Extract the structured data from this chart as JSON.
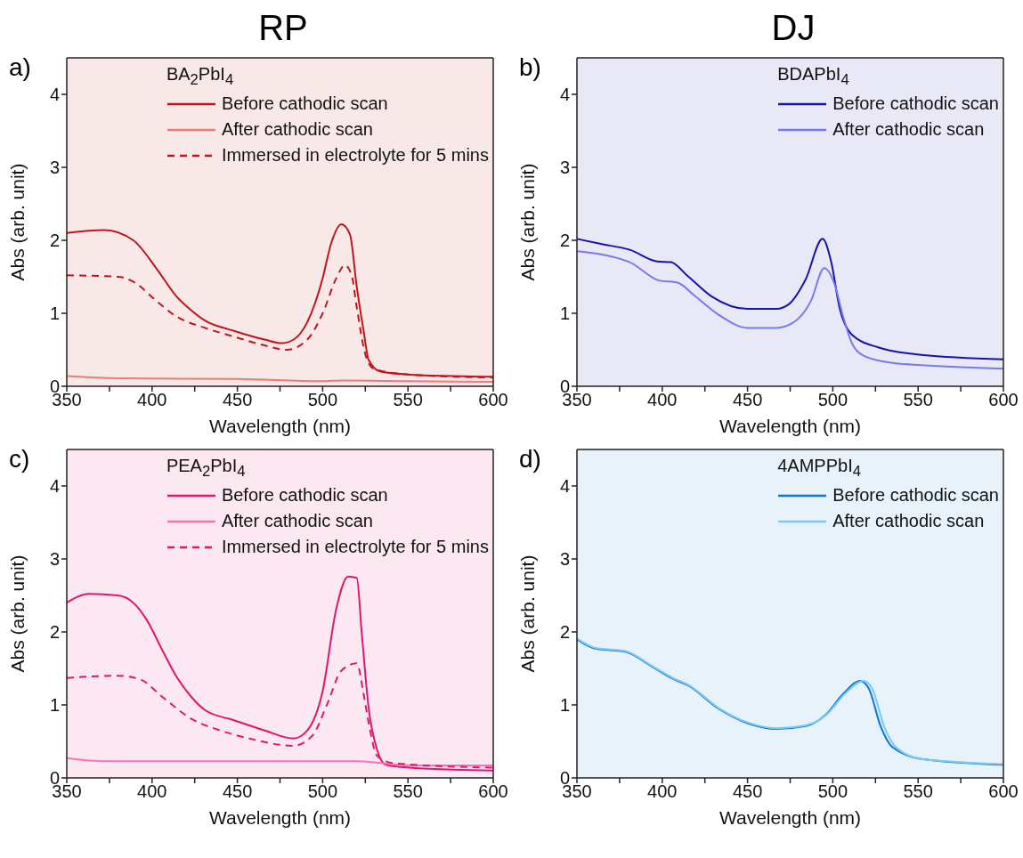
{
  "chart_data": [
    {
      "type": "line",
      "title": "RP",
      "annotations": [
        "a)"
      ],
      "xlabel": "Wavelength (nm)",
      "ylabel": "Abs (arb. unit)",
      "legend_title": "BA$_{2}$PbI$_{4}$",
      "legend": "top right",
      "grid": false,
      "marker": "none",
      "xlim": [
        350,
        600
      ],
      "xticks": [
        350,
        {
          "value": 375,
          "label": null
        },
        400,
        {
          "value": 425,
          "label": null
        },
        450,
        {
          "value": 475,
          "label": null
        },
        500,
        {
          "value": 525,
          "label": null
        },
        550,
        {
          "value": 575,
          "label": null
        },
        600
      ],
      "ylim": [
        0,
        4.5
      ],
      "yticks": [
        0,
        1,
        2,
        3,
        4
      ],
      "series": [
        {
          "name": "Before cathodic scan",
          "color": "#c0141c",
          "line_style": "solid",
          "x": [
            350,
            372,
            389,
            403,
            414,
            423,
            431,
            448,
            466,
            476,
            483,
            491,
            500,
            505,
            511,
            516,
            520,
            524,
            527,
            534,
            551,
            600
          ],
          "values": [
            2.1,
            2.14,
            2.0,
            1.6,
            1.24,
            1.04,
            0.9,
            0.76,
            0.64,
            0.59,
            0.64,
            0.88,
            1.48,
            1.96,
            2.22,
            2.08,
            1.36,
            0.76,
            0.36,
            0.2,
            0.16,
            0.13
          ]
        },
        {
          "name": "After cathodic scan",
          "color": "#f07a7a",
          "line_style": "solid",
          "x": [
            350,
            380,
            450,
            500,
            512,
            550,
            600
          ],
          "values": [
            0.14,
            0.11,
            0.1,
            0.07,
            0.08,
            0.07,
            0.06
          ]
        },
        {
          "name": "Immersed in electrolyte for 5 mins",
          "color": "#c0141c",
          "line_style": "dashed",
          "x": [
            350,
            380,
            390,
            401,
            414,
            431,
            448,
            466,
            479,
            491,
            500,
            508,
            513,
            517,
            520,
            525,
            530,
            551,
            600
          ],
          "values": [
            1.52,
            1.5,
            1.42,
            1.2,
            0.96,
            0.8,
            0.68,
            0.56,
            0.5,
            0.64,
            1.0,
            1.48,
            1.66,
            1.52,
            1.08,
            0.44,
            0.24,
            0.16,
            0.12
          ]
        }
      ]
    },
    {
      "type": "line",
      "title": "DJ",
      "annotations": [
        "b)"
      ],
      "xlabel": "Wavelength (nm)",
      "ylabel": "Abs (arb. unit)",
      "legend_title": "BDAPbI$_{4}$",
      "legend": "top right",
      "grid": false,
      "marker": "none",
      "xlim": [
        350,
        600
      ],
      "xticks": [
        350,
        {
          "value": 375,
          "label": null
        },
        400,
        {
          "value": 425,
          "label": null
        },
        450,
        {
          "value": 475,
          "label": null
        },
        500,
        {
          "value": 525,
          "label": null
        },
        550,
        {
          "value": 575,
          "label": null
        },
        600
      ],
      "ylim": [
        0,
        4.5
      ],
      "yticks": [
        0,
        1,
        2,
        3,
        4
      ],
      "series": [
        {
          "name": "Before cathodic scan",
          "color": "#1414a8",
          "line_style": "solid",
          "x": [
            350,
            364,
            381,
            397,
            405,
            415,
            429,
            450,
            467,
            474,
            484,
            494,
            499,
            504,
            511,
            527,
            552,
            600
          ],
          "values": [
            2.02,
            1.95,
            1.87,
            1.71,
            1.7,
            1.51,
            1.23,
            1.06,
            1.06,
            1.12,
            1.46,
            2.02,
            1.71,
            1.07,
            0.71,
            0.53,
            0.43,
            0.37
          ]
        },
        {
          "name": "After cathodic scan",
          "color": "#7878f0",
          "line_style": "solid",
          "x": [
            350,
            381,
            398,
            409,
            419,
            433,
            450,
            467,
            476,
            487,
            495,
            501,
            506,
            511,
            518,
            535,
            552,
            600
          ],
          "values": [
            1.85,
            1.7,
            1.45,
            1.42,
            1.24,
            0.98,
            0.8,
            0.8,
            0.86,
            1.16,
            1.62,
            1.4,
            0.96,
            0.6,
            0.42,
            0.32,
            0.29,
            0.24
          ]
        }
      ]
    },
    {
      "type": "line",
      "annotations": [
        "c)"
      ],
      "xlabel": "Wavelength (nm)",
      "ylabel": "Abs (arb. unit)",
      "legend_title": "PEA$_{2}$PbI$_{4}$",
      "legend": "top right",
      "grid": false,
      "marker": "none",
      "xlim": [
        350,
        600
      ],
      "xticks": [
        350,
        {
          "value": 375,
          "label": null
        },
        400,
        {
          "value": 425,
          "label": null
        },
        450,
        {
          "value": 475,
          "label": null
        },
        500,
        {
          "value": 525,
          "label": null
        },
        550,
        {
          "value": 575,
          "label": null
        },
        600
      ],
      "ylim": [
        0,
        4.5
      ],
      "yticks": [
        0,
        1,
        2,
        3,
        4
      ],
      "series": [
        {
          "name": "Before cathodic scan",
          "color": "#e0166e",
          "line_style": "solid",
          "x": [
            350,
            363,
            380,
            389,
            397,
            406,
            414,
            423,
            431,
            448,
            466,
            483,
            491,
            500,
            508,
            515,
            520,
            523,
            527,
            532,
            537,
            551,
            600
          ],
          "values": [
            2.4,
            2.52,
            2.5,
            2.4,
            2.16,
            1.75,
            1.4,
            1.11,
            0.93,
            0.79,
            0.65,
            0.54,
            0.65,
            1.19,
            2.32,
            2.76,
            2.74,
            1.96,
            0.95,
            0.38,
            0.18,
            0.14,
            0.1
          ]
        },
        {
          "name": "After cathodic scan",
          "color": "#ff6fb4",
          "line_style": "solid",
          "x": [
            350,
            370,
            450,
            520,
            535,
            550,
            600
          ],
          "values": [
            0.27,
            0.23,
            0.23,
            0.23,
            0.2,
            0.17,
            0.17
          ]
        },
        {
          "name": "Immersed in electrolyte for 5 mins",
          "color": "#e0166e",
          "line_style": "dashed",
          "x": [
            350,
            380,
            393,
            406,
            423,
            440,
            457,
            483,
            494,
            503,
            511,
            520,
            524,
            527,
            532,
            542,
            600
          ],
          "values": [
            1.37,
            1.4,
            1.35,
            1.11,
            0.81,
            0.65,
            0.54,
            0.44,
            0.58,
            1.03,
            1.47,
            1.57,
            1.15,
            0.75,
            0.3,
            0.2,
            0.14
          ]
        }
      ]
    },
    {
      "type": "line",
      "annotations": [
        "d)"
      ],
      "xlabel": "Wavelength (nm)",
      "ylabel": "Abs (arb. unit)",
      "legend_title": "4AMPPbI$_{4}$",
      "legend": "top right",
      "grid": false,
      "marker": "none",
      "xlim": [
        350,
        600
      ],
      "xticks": [
        350,
        {
          "value": 375,
          "label": null
        },
        400,
        {
          "value": 425,
          "label": null
        },
        450,
        {
          "value": 475,
          "label": null
        },
        500,
        {
          "value": 525,
          "label": null
        },
        550,
        {
          "value": 575,
          "label": null
        },
        600
      ],
      "ylim": [
        0,
        4.5
      ],
      "yticks": [
        0,
        1,
        2,
        3,
        4
      ],
      "series": [
        {
          "name": "Before cathodic scan",
          "color": "#0a78d0",
          "line_style": "solid",
          "x": [
            350,
            361,
            378,
            395,
            407,
            415,
            433,
            450,
            467,
            484,
            496,
            506,
            516,
            521,
            528,
            535,
            552,
            600
          ],
          "values": [
            1.9,
            1.77,
            1.73,
            1.51,
            1.35,
            1.27,
            0.95,
            0.75,
            0.67,
            0.71,
            0.87,
            1.15,
            1.33,
            1.23,
            0.71,
            0.42,
            0.26,
            0.18
          ]
        },
        {
          "name": "After cathodic scan",
          "color": "#7cc8f8",
          "line_style": "solid",
          "x": [
            350,
            361,
            378,
            395,
            407,
            415,
            433,
            450,
            467,
            484,
            496,
            507,
            518,
            523,
            530,
            537,
            552,
            600
          ],
          "values": [
            1.91,
            1.78,
            1.74,
            1.52,
            1.36,
            1.28,
            0.96,
            0.76,
            0.68,
            0.72,
            0.86,
            1.15,
            1.33,
            1.23,
            0.71,
            0.42,
            0.26,
            0.19
          ]
        }
      ]
    }
  ]
}
